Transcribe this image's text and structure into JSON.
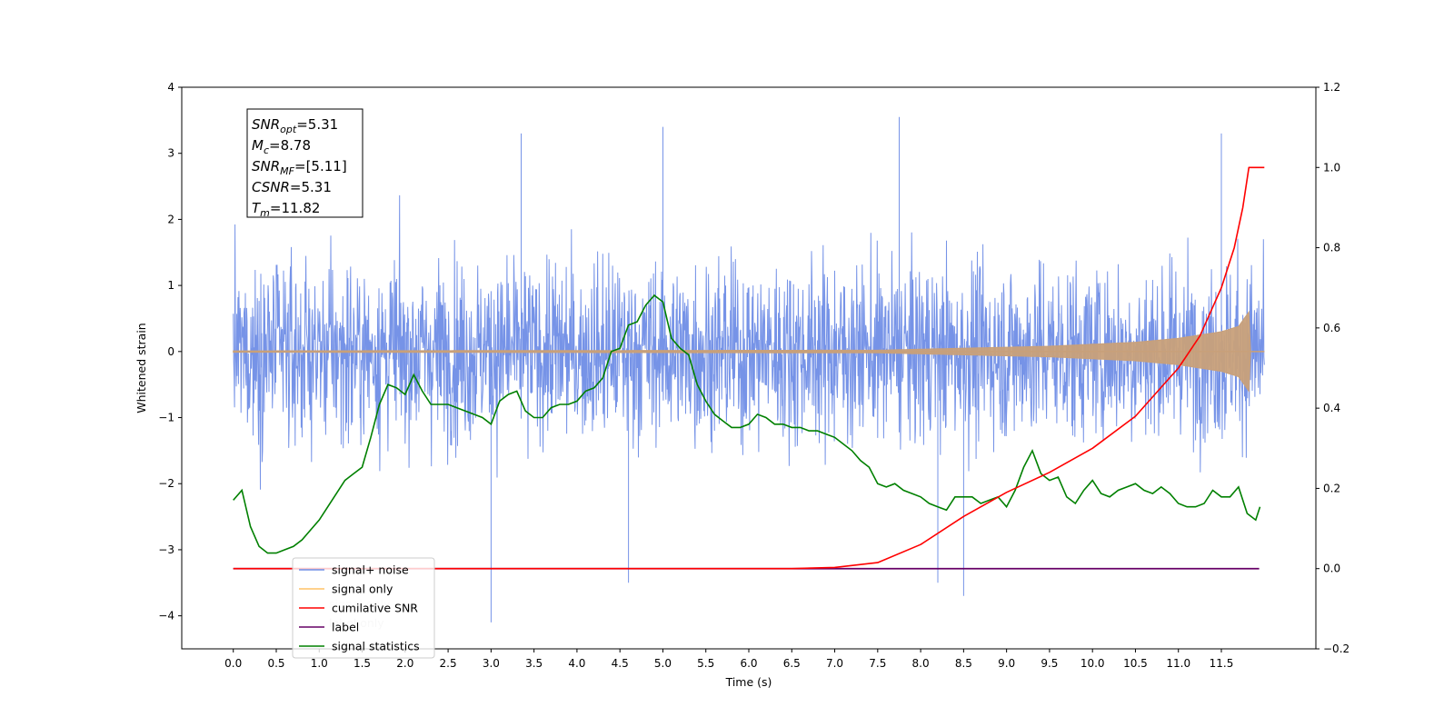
{
  "chart_data": {
    "type": "line",
    "xlabel": "Time (s)",
    "ylabel_left": "Whitened strain",
    "ylabel_right": "",
    "xlim": [
      -0.6,
      12.6
    ],
    "ylim_left": [
      -4.5,
      4
    ],
    "ylim_right": [
      -0.2,
      1.2
    ],
    "grid": false,
    "x_ticks": [
      "0.0",
      "0.5",
      "1.0",
      "1.5",
      "2.0",
      "2.5",
      "3.0",
      "3.5",
      "4.0",
      "4.5",
      "5.0",
      "5.5",
      "6.0",
      "6.5",
      "7.0",
      "7.5",
      "8.0",
      "8.5",
      "9.0",
      "9.5",
      "10.0",
      "10.5",
      "11.0",
      "11.5"
    ],
    "y_ticks_left": [
      "4",
      "3",
      "2",
      "1",
      "0",
      "−1",
      "−2",
      "−3",
      "−4"
    ],
    "y_ticks_right": [
      "1.2",
      "1.0",
      "0.8",
      "0.6",
      "0.4",
      "0.2",
      "0.0",
      "−0.2"
    ],
    "annotation_lines": [
      {
        "base": "SNR",
        "sub": "opt",
        "rest": "=5.31"
      },
      {
        "base": "M",
        "sub": "c",
        "rest": "=8.78"
      },
      {
        "base": "SNR",
        "sub": "MF",
        "rest": "=[5.11]"
      },
      {
        "base": "CSNR",
        "sub": "",
        "rest": "=5.31"
      },
      {
        "base": "T",
        "sub": "m",
        "rest": "=11.82"
      }
    ],
    "legend": {
      "placement": "lower-left",
      "entries": [
        {
          "label": "signal+ noise",
          "color": "#6f8de6"
        },
        {
          "label": "signal only",
          "color": "#ffc266"
        },
        {
          "label": "cumilative SNR",
          "color": "#ff0000"
        },
        {
          "label": "label",
          "color": "#660066"
        },
        {
          "label": "signal statistics",
          "color": "#008000"
        }
      ],
      "occluded_text": [
        "signal only",
        "label only"
      ]
    },
    "series": [
      {
        "name": "signal+ noise",
        "axis": "left",
        "color": "#6f8de6",
        "description_range": [
          -3.4,
          3.6
        ],
        "x_range": [
          0,
          12.0
        ],
        "notable_spikes": [
          {
            "x": 3.0,
            "y": -4.1
          },
          {
            "x": 8.5,
            "y": -3.7
          },
          {
            "x": 8.2,
            "y": -3.5
          },
          {
            "x": 4.6,
            "y": -3.5
          },
          {
            "x": 7.75,
            "y": 3.55
          },
          {
            "x": 5.0,
            "y": 3.4
          },
          {
            "x": 11.5,
            "y": 3.3
          },
          {
            "x": 3.35,
            "y": 3.3
          }
        ]
      },
      {
        "name": "signal only",
        "axis": "left",
        "color": "#c8a07a",
        "envelope": {
          "x": [
            0,
            7.5,
            8.5,
            9.5,
            10.5,
            11.0,
            11.5,
            11.7,
            11.82,
            11.83,
            12.0
          ],
          "amp": [
            0.01,
            0.02,
            0.05,
            0.08,
            0.14,
            0.2,
            0.3,
            0.38,
            0.6,
            0.0,
            0.0
          ]
        }
      },
      {
        "name": "cumilative SNR",
        "axis": "right",
        "color": "#ff0000",
        "x": [
          0,
          6.5,
          7.0,
          7.5,
          8.0,
          8.5,
          9.0,
          9.5,
          10.0,
          10.5,
          11.0,
          11.25,
          11.5,
          11.65,
          11.75,
          11.82,
          12.0
        ],
        "y": [
          0,
          0,
          0.003,
          0.015,
          0.06,
          0.13,
          0.19,
          0.24,
          0.3,
          0.38,
          0.5,
          0.58,
          0.7,
          0.8,
          0.9,
          1.0,
          1.0
        ]
      },
      {
        "name": "label",
        "axis": "right",
        "color": "#660066",
        "x": [
          0,
          11.94
        ],
        "y": [
          0,
          0
        ]
      },
      {
        "name": "signal statistics",
        "axis": "left",
        "color": "#008000",
        "x": [
          0.0,
          0.1,
          0.2,
          0.3,
          0.4,
          0.5,
          0.6,
          0.7,
          0.8,
          0.9,
          1.0,
          1.1,
          1.2,
          1.3,
          1.4,
          1.5,
          1.6,
          1.7,
          1.8,
          1.9,
          2.0,
          2.1,
          2.2,
          2.3,
          2.4,
          2.5,
          2.6,
          2.7,
          2.8,
          2.9,
          3.0,
          3.1,
          3.2,
          3.3,
          3.4,
          3.5,
          3.6,
          3.7,
          3.8,
          3.9,
          4.0,
          4.1,
          4.2,
          4.3,
          4.4,
          4.5,
          4.6,
          4.7,
          4.8,
          4.9,
          5.0,
          5.1,
          5.2,
          5.3,
          5.4,
          5.5,
          5.6,
          5.7,
          5.8,
          5.9,
          6.0,
          6.1,
          6.2,
          6.3,
          6.4,
          6.5,
          6.6,
          6.7,
          6.8,
          6.9,
          7.0,
          7.1,
          7.2,
          7.3,
          7.4,
          7.5,
          7.6,
          7.7,
          7.8,
          7.9,
          8.0,
          8.1,
          8.2,
          8.3,
          8.4,
          8.5,
          8.6,
          8.7,
          8.8,
          8.9,
          9.0,
          9.1,
          9.2,
          9.3,
          9.4,
          9.5,
          9.6,
          9.7,
          9.8,
          9.9,
          10.0,
          10.1,
          10.2,
          10.3,
          10.4,
          10.5,
          10.6,
          10.7,
          10.8,
          10.9,
          11.0,
          11.1,
          11.2,
          11.3,
          11.4,
          11.5,
          11.6,
          11.7,
          11.8,
          11.9,
          11.95
        ],
        "y": [
          -2.25,
          -2.1,
          -2.65,
          -2.95,
          -3.05,
          -3.05,
          -3.0,
          -2.95,
          -2.85,
          -2.7,
          -2.55,
          -2.35,
          -2.15,
          -1.95,
          -1.85,
          -1.75,
          -1.3,
          -0.8,
          -0.5,
          -0.55,
          -0.65,
          -0.35,
          -0.6,
          -0.8,
          -0.8,
          -0.8,
          -0.85,
          -0.9,
          -0.95,
          -1.0,
          -1.1,
          -0.75,
          -0.65,
          -0.6,
          -0.9,
          -1.0,
          -1.0,
          -0.85,
          -0.8,
          -0.8,
          -0.75,
          -0.6,
          -0.55,
          -0.4,
          0.0,
          0.05,
          0.4,
          0.45,
          0.7,
          0.85,
          0.75,
          0.2,
          0.05,
          -0.05,
          -0.5,
          -0.75,
          -0.95,
          -1.05,
          -1.15,
          -1.15,
          -1.1,
          -0.95,
          -1.0,
          -1.1,
          -1.1,
          -1.15,
          -1.15,
          -1.2,
          -1.2,
          -1.25,
          -1.3,
          -1.4,
          -1.5,
          -1.65,
          -1.75,
          -2.0,
          -2.05,
          -2.0,
          -2.1,
          -2.15,
          -2.2,
          -2.3,
          -2.35,
          -2.4,
          -2.2,
          -2.2,
          -2.2,
          -2.3,
          -2.25,
          -2.2,
          -2.35,
          -2.1,
          -1.75,
          -1.5,
          -1.85,
          -1.95,
          -1.9,
          -2.2,
          -2.3,
          -2.1,
          -1.95,
          -2.15,
          -2.2,
          -2.1,
          -2.05,
          -2.0,
          -2.1,
          -2.15,
          -2.05,
          -2.15,
          -2.3,
          -2.35,
          -2.35,
          -2.3,
          -2.1,
          -2.2,
          -2.2,
          -2.05,
          -2.45,
          -2.55,
          -2.35
        ]
      }
    ]
  }
}
